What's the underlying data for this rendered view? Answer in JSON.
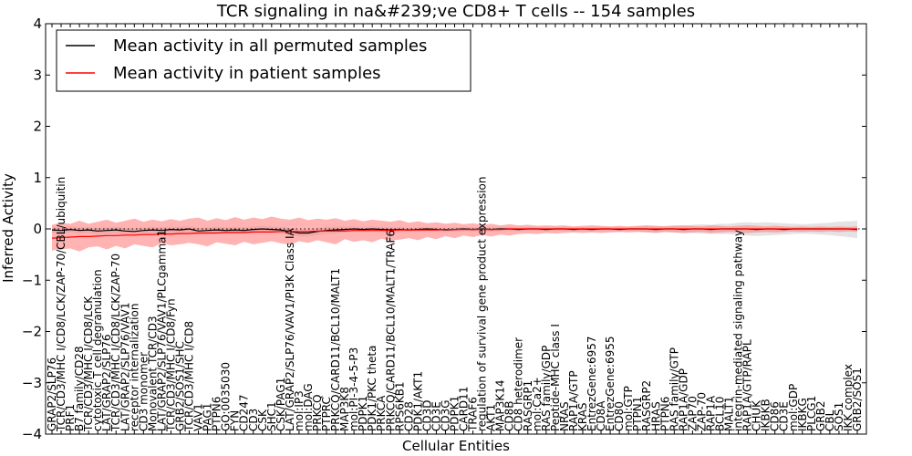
{
  "chart_data": {
    "type": "line",
    "title": "TCR signaling in na&#239;ve CD8+ T cells -- 154 samples",
    "xlabel": "Cellular Entities",
    "ylabel": "Inferred Activity",
    "ylim": [
      -4,
      4
    ],
    "yticks": [
      -4,
      -3,
      -2,
      -1,
      0,
      1,
      2,
      3,
      4
    ],
    "legend_position": "top-left",
    "categories": [
      "GRAP2/SLP76",
      "TCR/CD3/MHC I/CD8/LCK/ZAP-70/CBL/ubiquitin",
      "PRF1",
      "B7 family/CD28",
      "TCR/CD3/MHC I/CD8/LCK",
      "cytotoxic T cell degranulation",
      "LAT/GRAP2/SLP76",
      "TCR/CD3/MHC I/CD8/LCK/ZAP-70",
      "LAT/GRAP2/SLP76/VAV1",
      "receptor internalization",
      "CD3 monomer",
      "Monovalent TCR/CD3",
      "LAT/GRAP2/SLP76/VAV1/PLCgamma1",
      "TCR/CD3/MHC I/CD8/Fyn",
      "GRB2/SOS1/SHC",
      "TCR/CD3/MHC I/CD8",
      "VAV1",
      "PAG1",
      "PTPN6",
      "GO:0035030",
      "FYN",
      "CD247",
      "CD3",
      "CSK",
      "SHC1",
      "CSK/PAG1",
      "LAT/GRAP2/SLP76/VAV1/PI3K Class IA",
      "mol:IP3",
      "mol:DAG",
      "PRKCQ",
      "PTPRC",
      "PRKCQ/CARD11/BCL10/MALT1",
      "MAP3K8",
      "mol:PI-3-4-5-P3",
      "PDPK1",
      "PDK1/PKC theta",
      "PRKCA",
      "PRKCQ/CARD11/BCL10/MALT1/TRAF6",
      "RPS6KB1",
      "CD28",
      "PDK1/AKT1",
      "CD3D",
      "CD3E",
      "CD3G",
      "PDPK1",
      "CARD11",
      "TRAF6",
      "regulation of survival gene product expression",
      "AKT1",
      "MAP3K14",
      "CD8B",
      "CD8 heterodimer",
      "RASGRP1",
      "mol:Ca2+",
      "RAS family/GDP",
      "Peptide-MHC class I",
      "NRAS",
      "RAP1A/GTP",
      "KRAS",
      "EntrezGene:6957",
      "CD8A",
      "EntrezGene:6955",
      "CD80",
      "mol:GTP",
      "PTPN1",
      "RASGRP2",
      "HRAS",
      "PTPN6",
      "RAS family/GTP",
      "RAP1A/GDP",
      "ZAP70",
      "ZAP-70",
      "RAP1A",
      "BCL10",
      "MALT1",
      "integrin-mediated signaling pathway",
      "RAP1A/GTP/RAPL",
      "CHUK",
      "IKBKB",
      "CD86",
      "CD3E",
      "mol:GDP",
      "IKBKG",
      "PLCG1",
      "GRB2",
      "CBL",
      "SOS1",
      "IKK complex",
      "GRB2/SOS1"
    ],
    "series": [
      {
        "name": "Mean activity in all permuted samples",
        "color": "#000000",
        "mean": [
          -0.02,
          -0.03,
          -0.01,
          -0.03,
          -0.02,
          -0.04,
          -0.03,
          -0.02,
          -0.04,
          -0.05,
          -0.03,
          -0.02,
          -0.03,
          -0.01,
          -0.02,
          0.0,
          -0.04,
          -0.03,
          -0.02,
          -0.03,
          -0.02,
          -0.03,
          -0.01,
          0.0,
          -0.01,
          -0.02,
          -0.05,
          -0.08,
          -0.08,
          -0.05,
          -0.03,
          -0.02,
          -0.01,
          0.0,
          -0.01,
          0.0,
          -0.01,
          -0.02,
          -0.01,
          -0.02,
          -0.01,
          0.0,
          -0.01,
          -0.02,
          -0.01,
          0.0,
          -0.01,
          0.0,
          -0.01,
          0.0,
          0.0,
          -0.01,
          0.0,
          0.0,
          -0.01,
          0.0,
          0.0,
          -0.01,
          0.0,
          -0.01,
          0.0,
          0.0,
          -0.01,
          0.0,
          0.0,
          0.0,
          -0.01,
          0.0,
          0.0,
          -0.01,
          0.0,
          0.0,
          -0.01,
          0.0,
          0.0,
          0.0,
          0.0,
          -0.01,
          0.0,
          0.0,
          -0.01,
          0.0,
          0.0,
          0.0,
          0.0,
          0.0,
          0.0,
          0.0,
          -0.01
        ],
        "band_lower": [
          -0.08,
          -0.09,
          -0.07,
          -0.1,
          -0.08,
          -0.11,
          -0.1,
          -0.09,
          -0.11,
          -0.12,
          -0.1,
          -0.09,
          -0.1,
          -0.08,
          -0.09,
          -0.07,
          -0.11,
          -0.1,
          -0.09,
          -0.1,
          -0.09,
          -0.1,
          -0.08,
          -0.07,
          -0.08,
          -0.09,
          -0.12,
          -0.15,
          -0.15,
          -0.12,
          -0.1,
          -0.09,
          -0.07,
          -0.05,
          -0.06,
          -0.05,
          -0.06,
          -0.07,
          -0.06,
          -0.06,
          -0.05,
          -0.04,
          -0.05,
          -0.06,
          -0.05,
          -0.04,
          -0.05,
          -0.04,
          -0.05,
          -0.04,
          -0.04,
          -0.05,
          -0.04,
          -0.04,
          -0.05,
          -0.04,
          -0.04,
          -0.05,
          -0.04,
          -0.05,
          -0.04,
          -0.04,
          -0.05,
          -0.04,
          -0.05,
          -0.06,
          -0.07,
          -0.06,
          -0.07,
          -0.08,
          -0.08,
          -0.09,
          -0.1,
          -0.1,
          -0.1,
          -0.12,
          -0.13,
          -0.14,
          -0.13,
          -0.12,
          -0.11,
          -0.1,
          -0.09,
          -0.1,
          -0.11,
          -0.12,
          -0.14,
          -0.16,
          -0.18
        ],
        "band_upper": [
          0.04,
          0.03,
          0.05,
          0.03,
          0.04,
          0.02,
          0.03,
          0.04,
          0.02,
          0.01,
          0.03,
          0.04,
          0.03,
          0.05,
          0.04,
          0.06,
          0.02,
          0.03,
          0.04,
          0.03,
          0.04,
          0.03,
          0.05,
          0.06,
          0.05,
          0.04,
          0.02,
          -0.01,
          -0.01,
          0.02,
          0.04,
          0.05,
          0.05,
          0.05,
          0.04,
          0.05,
          0.04,
          0.03,
          0.04,
          0.02,
          0.03,
          0.04,
          0.03,
          0.02,
          0.03,
          0.04,
          0.03,
          0.04,
          0.03,
          0.04,
          0.04,
          0.03,
          0.04,
          0.04,
          0.03,
          0.04,
          0.04,
          0.03,
          0.04,
          0.03,
          0.04,
          0.04,
          0.03,
          0.04,
          0.05,
          0.06,
          0.05,
          0.06,
          0.07,
          0.06,
          0.08,
          0.09,
          0.08,
          0.1,
          0.1,
          0.12,
          0.13,
          0.12,
          0.13,
          0.12,
          0.11,
          0.1,
          0.09,
          0.1,
          0.11,
          0.12,
          0.14,
          0.15,
          0.16
        ]
      },
      {
        "name": "Mean activity in patient samples",
        "color": "#ff0000",
        "mean": [
          -0.18,
          -0.17,
          -0.16,
          -0.15,
          -0.15,
          -0.14,
          -0.13,
          -0.13,
          -0.12,
          -0.12,
          -0.11,
          -0.11,
          -0.1,
          -0.1,
          -0.09,
          -0.09,
          -0.08,
          -0.08,
          -0.08,
          -0.07,
          -0.07,
          -0.07,
          -0.06,
          -0.06,
          -0.06,
          -0.05,
          -0.05,
          -0.05,
          -0.05,
          -0.04,
          -0.04,
          -0.04,
          -0.04,
          -0.03,
          -0.03,
          -0.03,
          -0.03,
          -0.03,
          -0.02,
          -0.02,
          -0.02,
          -0.02,
          -0.02,
          -0.01,
          -0.01,
          -0.01,
          -0.01,
          -0.01,
          -0.01,
          -0.01,
          0.0,
          0.0,
          0.0,
          0.0,
          0.0,
          0.0,
          0.0,
          0.0,
          0.0,
          0.0,
          0.0,
          0.0,
          0.0,
          0.0,
          0.0,
          0.0,
          0.0,
          0.0,
          0.0,
          0.0,
          0.0,
          0.0,
          0.0,
          0.0,
          0.0,
          0.0,
          0.0,
          0.0,
          0.0,
          0.0,
          0.0,
          0.0,
          0.0,
          0.0,
          0.0,
          0.0,
          0.0,
          0.0,
          0.0
        ],
        "band_lower": [
          -0.42,
          -0.4,
          -0.38,
          -0.44,
          -0.36,
          -0.34,
          -0.4,
          -0.33,
          -0.38,
          -0.3,
          -0.33,
          -0.36,
          -0.28,
          -0.32,
          -0.3,
          -0.27,
          -0.3,
          -0.34,
          -0.26,
          -0.29,
          -0.32,
          -0.25,
          -0.3,
          -0.27,
          -0.24,
          -0.28,
          -0.31,
          -0.24,
          -0.27,
          -0.22,
          -0.26,
          -0.3,
          -0.2,
          -0.25,
          -0.22,
          -0.26,
          -0.19,
          -0.23,
          -0.21,
          -0.18,
          -0.22,
          -0.16,
          -0.2,
          -0.14,
          -0.18,
          -0.13,
          -0.16,
          -0.12,
          -0.15,
          -0.11,
          -0.13,
          -0.1,
          -0.09,
          -0.1,
          -0.08,
          -0.09,
          -0.08,
          -0.07,
          -0.08,
          -0.07,
          -0.08,
          -0.07,
          -0.06,
          -0.07,
          -0.06,
          -0.07,
          -0.08,
          -0.06,
          -0.07,
          -0.08,
          -0.07,
          -0.06,
          -0.08,
          -0.07,
          -0.06,
          -0.07,
          -0.08,
          -0.07,
          -0.06,
          -0.07,
          -0.06,
          -0.05,
          -0.06,
          -0.05,
          -0.06,
          -0.05,
          -0.06,
          -0.05,
          -0.06
        ],
        "band_upper": [
          0.08,
          0.12,
          0.1,
          0.16,
          0.1,
          0.14,
          0.18,
          0.12,
          0.16,
          0.2,
          0.14,
          0.18,
          0.15,
          0.19,
          0.16,
          0.2,
          0.22,
          0.16,
          0.21,
          0.17,
          0.23,
          0.18,
          0.22,
          0.19,
          0.24,
          0.2,
          0.18,
          0.22,
          0.17,
          0.2,
          0.18,
          0.21,
          0.16,
          0.19,
          0.15,
          0.18,
          0.16,
          0.14,
          0.17,
          0.12,
          0.15,
          0.11,
          0.13,
          0.1,
          0.12,
          0.09,
          0.11,
          0.08,
          0.1,
          0.07,
          0.09,
          0.07,
          0.08,
          0.06,
          0.07,
          0.06,
          0.07,
          0.05,
          0.06,
          0.07,
          0.06,
          0.05,
          0.06,
          0.05,
          0.06,
          0.07,
          0.06,
          0.05,
          0.06,
          0.07,
          0.06,
          0.05,
          0.07,
          0.06,
          0.05,
          0.06,
          0.07,
          0.06,
          0.05,
          0.06,
          0.05,
          0.04,
          0.05,
          0.04,
          0.05,
          0.04,
          0.05,
          0.04,
          0.05
        ]
      }
    ],
    "band_fill_colors": {
      "permuted": "#d9d9d9",
      "patient": "#ff8080"
    }
  }
}
